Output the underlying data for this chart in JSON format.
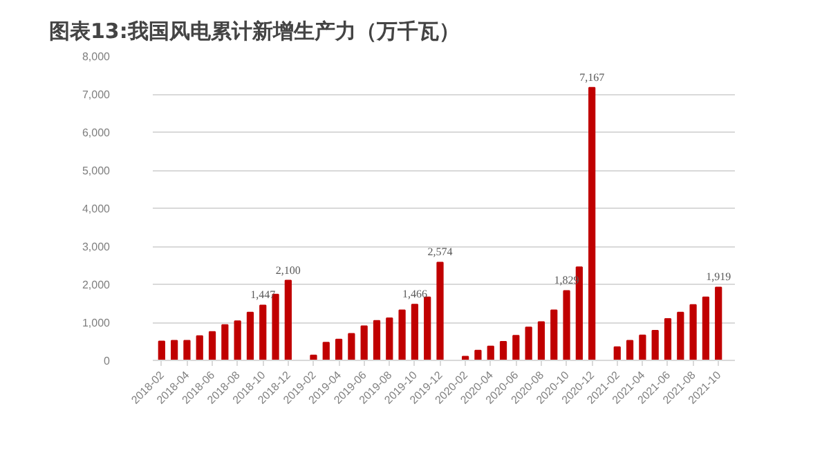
{
  "chart_data": {
    "type": "bar",
    "title": "图表13:我国风电累计新增生产力（万千瓦）",
    "categories": [
      "2018-02",
      null,
      "2018-04",
      null,
      "2018-06",
      null,
      "2018-08",
      null,
      "2018-10",
      null,
      "2018-12",
      null,
      "2019-02",
      null,
      "2019-04",
      null,
      "2019-06",
      null,
      "2019-08",
      null,
      "2019-10",
      null,
      "2019-12",
      null,
      "2020-02",
      null,
      "2020-04",
      null,
      "2020-06",
      null,
      "2020-08",
      null,
      "2020-10",
      null,
      "2020-12",
      null,
      "2021-02",
      null,
      "2021-04",
      null,
      "2021-06",
      null,
      "2021-08",
      null,
      "2021-10"
    ],
    "values": [
      500,
      520,
      520,
      640,
      750,
      930,
      1030,
      1260,
      1447,
      1730,
      2100,
      null,
      130,
      470,
      550,
      700,
      900,
      1040,
      1110,
      1320,
      1466,
      1660,
      2574,
      null,
      100,
      260,
      370,
      490,
      650,
      870,
      1010,
      1320,
      1829,
      2450,
      7167,
      null,
      350,
      520,
      660,
      780,
      1090,
      1260,
      1460,
      1660,
      1919
    ],
    "value_labels": [
      null,
      null,
      null,
      null,
      null,
      null,
      null,
      null,
      "1,447",
      null,
      "2,100",
      null,
      null,
      null,
      null,
      null,
      null,
      null,
      null,
      null,
      "1,466",
      null,
      "2,574",
      null,
      null,
      null,
      null,
      null,
      null,
      null,
      null,
      null,
      "1,829",
      null,
      "7,167",
      null,
      null,
      null,
      null,
      null,
      null,
      null,
      null,
      null,
      "1,919"
    ],
    "color": "#c00000",
    "ylim": [
      0,
      8000
    ],
    "yticks": [
      0,
      {
        "value": 1000,
        "label": "1,000"
      },
      {
        "value": 2000,
        "label": "2,000"
      },
      {
        "value": 3000,
        "label": "3,000"
      },
      {
        "value": 4000,
        "label": "4,000"
      },
      {
        "value": 5000,
        "label": "5,000"
      },
      {
        "value": 6000,
        "label": "6,000"
      },
      {
        "value": 7000,
        "label": "7,000"
      },
      {
        "value": 8000,
        "label": "8,000"
      }
    ],
    "grid": "y"
  }
}
